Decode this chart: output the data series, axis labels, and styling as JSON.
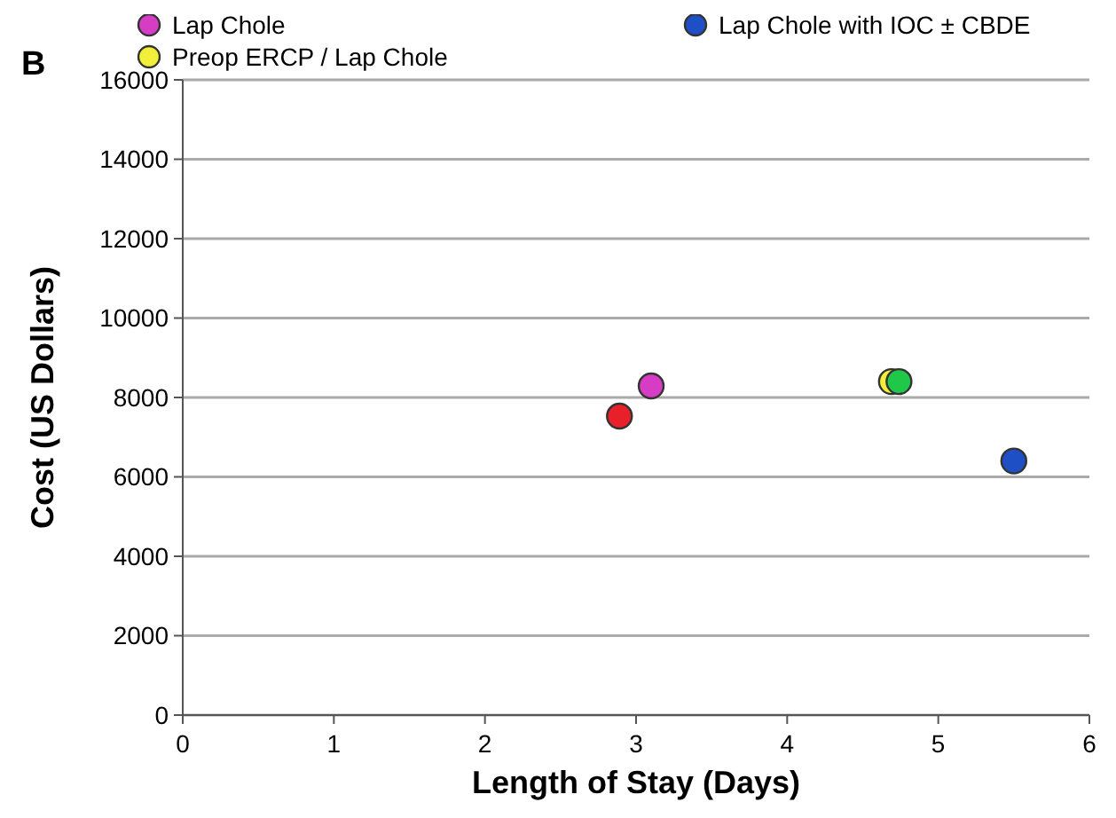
{
  "chart_data": {
    "type": "scatter",
    "xlabel": "Length of Stay (Days)",
    "ylabel": "Cost (US Dollars)",
    "annotations": [
      "B"
    ],
    "xlim": [
      0,
      6
    ],
    "xticks": [
      0,
      1,
      2,
      3,
      4,
      5,
      6
    ],
    "ylim": [
      0,
      16000
    ],
    "yticks": [
      0,
      2000,
      4000,
      6000,
      8000,
      10000,
      12000,
      14000,
      16000
    ],
    "grid": "y",
    "marker": "circle",
    "legend": "top",
    "series": [
      {
        "color": "#e8202a",
        "x": [
          2.89
        ],
        "values": [
          7530
        ]
      },
      {
        "name": "Lap Chole",
        "color": "#d63cc4",
        "x": [
          3.1
        ],
        "values": [
          8290
        ]
      },
      {
        "name": "Preop ERCP / Lap Chole",
        "color": "#f2ee3c",
        "x": [
          4.69
        ],
        "values": [
          8400
        ]
      },
      {
        "color": "#20c84a",
        "x": [
          4.74
        ],
        "values": [
          8400
        ]
      },
      {
        "name": "Lap Chole with IOC ± CBDE",
        "color": "#1f4fc4",
        "x": [
          5.5
        ],
        "values": [
          6400
        ]
      }
    ]
  }
}
